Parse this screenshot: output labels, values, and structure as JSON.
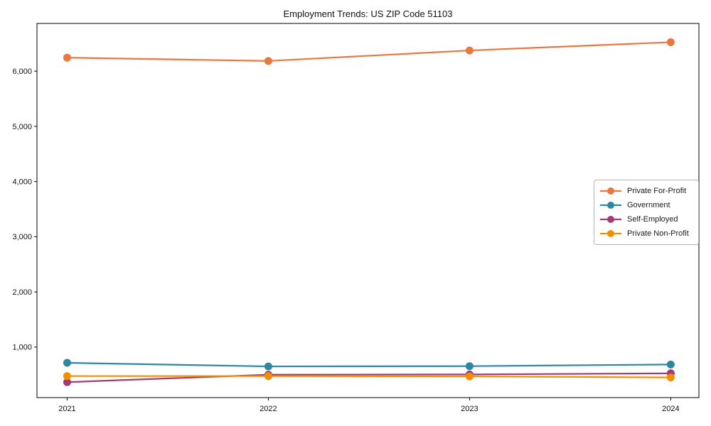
{
  "title": "Employment Trends: US ZIP Code 51103",
  "chart_data": {
    "type": "line",
    "title": "Employment Trends: US ZIP Code 51103",
    "xlabel": "",
    "ylabel": "",
    "x": [
      2021,
      2022,
      2023,
      2024
    ],
    "x_tick_labels": [
      "2021",
      "2022",
      "2023",
      "2024"
    ],
    "y_ticks": [
      1000,
      2000,
      3000,
      4000,
      5000,
      6000
    ],
    "y_tick_labels": [
      "1,000",
      "2,000",
      "3,000",
      "4,000",
      "5,000",
      "6,000"
    ],
    "xlim": [
      2020.85,
      2024.14
    ],
    "ylim": [
      85,
      6865
    ],
    "grid": false,
    "legend_position": "center-right",
    "background_color": "#ffffff",
    "spine_color": "#000000",
    "series": [
      {
        "name": "Private For-Profit",
        "color": "#E87840",
        "values": [
          6245,
          6185,
          6375,
          6525
        ]
      },
      {
        "name": "Government",
        "color": "#2E86A0",
        "values": [
          715,
          650,
          655,
          685
        ]
      },
      {
        "name": "Self-Employed",
        "color": "#A23B72",
        "values": [
          365,
          500,
          505,
          525
        ]
      },
      {
        "name": "Private Non-Profit",
        "color": "#F18F01",
        "values": [
          475,
          475,
          470,
          450
        ]
      }
    ]
  }
}
